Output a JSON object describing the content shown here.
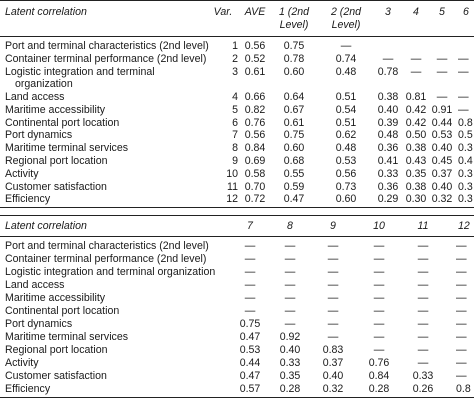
{
  "table1": {
    "headers": {
      "title": "Latent correlation",
      "var": "Var.",
      "ave": "AVE",
      "h1a": "1 (2nd",
      "h1b": "Level)",
      "h2a": "2 (2nd",
      "h2b": "Level)",
      "h3": "3",
      "h4": "4",
      "h5": "5",
      "h6": "6"
    },
    "rows": [
      {
        "label": "Port and terminal characteristics (2nd level)",
        "var": "1",
        "ave": "0.56",
        "c": [
          "0.75",
          "—",
          "",
          "",
          "",
          ""
        ]
      },
      {
        "label": "Container terminal performance (2nd level)",
        "var": "2",
        "ave": "0.52",
        "c": [
          "0.78",
          "0.74",
          "—",
          "—",
          "—",
          "—"
        ]
      },
      {
        "label": "Logistic integration and terminal",
        "label2": "organization",
        "var": "3",
        "ave": "0.61",
        "c": [
          "0.60",
          "0.48",
          "0.78",
          "—",
          "—",
          "—"
        ]
      },
      {
        "label": "Land access",
        "var": "4",
        "ave": "0.66",
        "c": [
          "0.64",
          "0.51",
          "0.38",
          "0.81",
          "—",
          "—"
        ]
      },
      {
        "label": "Maritime accessibility",
        "var": "5",
        "ave": "0.82",
        "c": [
          "0.67",
          "0.54",
          "0.40",
          "0.42",
          "0.91",
          "—"
        ]
      },
      {
        "label": "Continental port location",
        "var": "6",
        "ave": "0.76",
        "c": [
          "0.61",
          "0.51",
          "0.39",
          "0.42",
          "0.44",
          "0.8"
        ]
      },
      {
        "label": "Port dynamics",
        "var": "7",
        "ave": "0.56",
        "c": [
          "0.75",
          "0.62",
          "0.48",
          "0.50",
          "0.53",
          "0.5"
        ]
      },
      {
        "label": "Maritime terminal services",
        "var": "8",
        "ave": "0.84",
        "c": [
          "0.60",
          "0.48",
          "0.36",
          "0.38",
          "0.40",
          "0.3"
        ]
      },
      {
        "label": "Regional port location",
        "var": "9",
        "ave": "0.69",
        "c": [
          "0.68",
          "0.53",
          "0.41",
          "0.43",
          "0.45",
          "0.4"
        ]
      },
      {
        "label": "Activity",
        "var": "10",
        "ave": "0.58",
        "c": [
          "0.55",
          "0.56",
          "0.33",
          "0.35",
          "0.37",
          "0.3"
        ]
      },
      {
        "label": "Customer satisfaction",
        "var": "11",
        "ave": "0.70",
        "c": [
          "0.59",
          "0.73",
          "0.36",
          "0.38",
          "0.40",
          "0.3"
        ]
      },
      {
        "label": "Efficiency",
        "var": "12",
        "ave": "0.72",
        "c": [
          "0.47",
          "0.60",
          "0.29",
          "0.30",
          "0.32",
          "0.3"
        ]
      }
    ]
  },
  "table2": {
    "headers": {
      "title": "Latent correlation",
      "h7": "7",
      "h8": "8",
      "h9": "9",
      "h10": "10",
      "h11": "11",
      "h12": "12"
    },
    "rows": [
      {
        "label": "Port and terminal characteristics (2nd level)",
        "c": [
          "—",
          "—",
          "—",
          "—",
          "—",
          "—"
        ]
      },
      {
        "label": "Container terminal performance (2nd level)",
        "c": [
          "—",
          "—",
          "—",
          "—",
          "—",
          "—"
        ]
      },
      {
        "label": "Logistic integration and terminal organization",
        "c": [
          "—",
          "—",
          "—",
          "—",
          "—",
          "—"
        ]
      },
      {
        "label": "Land access",
        "c": [
          "—",
          "—",
          "—",
          "—",
          "—",
          "—"
        ]
      },
      {
        "label": "Maritime accessibility",
        "c": [
          "—",
          "—",
          "—",
          "—",
          "—",
          "—"
        ]
      },
      {
        "label": "Continental port location",
        "c": [
          "—",
          "—",
          "—",
          "—",
          "—",
          "—"
        ]
      },
      {
        "label": "Port dynamics",
        "c": [
          "0.75",
          "—",
          "—",
          "—",
          "—",
          "—"
        ]
      },
      {
        "label": "Maritime terminal services",
        "c": [
          "0.47",
          "0.92",
          "—",
          "—",
          "—",
          "—"
        ]
      },
      {
        "label": "Regional port location",
        "c": [
          "0.53",
          "0.40",
          "0.83",
          "—",
          "—",
          "—"
        ]
      },
      {
        "label": "Activity",
        "c": [
          "0.44",
          "0.33",
          "0.37",
          "0.76",
          "—",
          "—"
        ]
      },
      {
        "label": "Customer satisfaction",
        "c": [
          "0.47",
          "0.35",
          "0.40",
          "0.84",
          "0.33",
          "—"
        ]
      },
      {
        "label": "Efficiency",
        "c": [
          "0.57",
          "0.28",
          "0.32",
          "0.28",
          "0.26",
          "0.8"
        ]
      }
    ]
  }
}
